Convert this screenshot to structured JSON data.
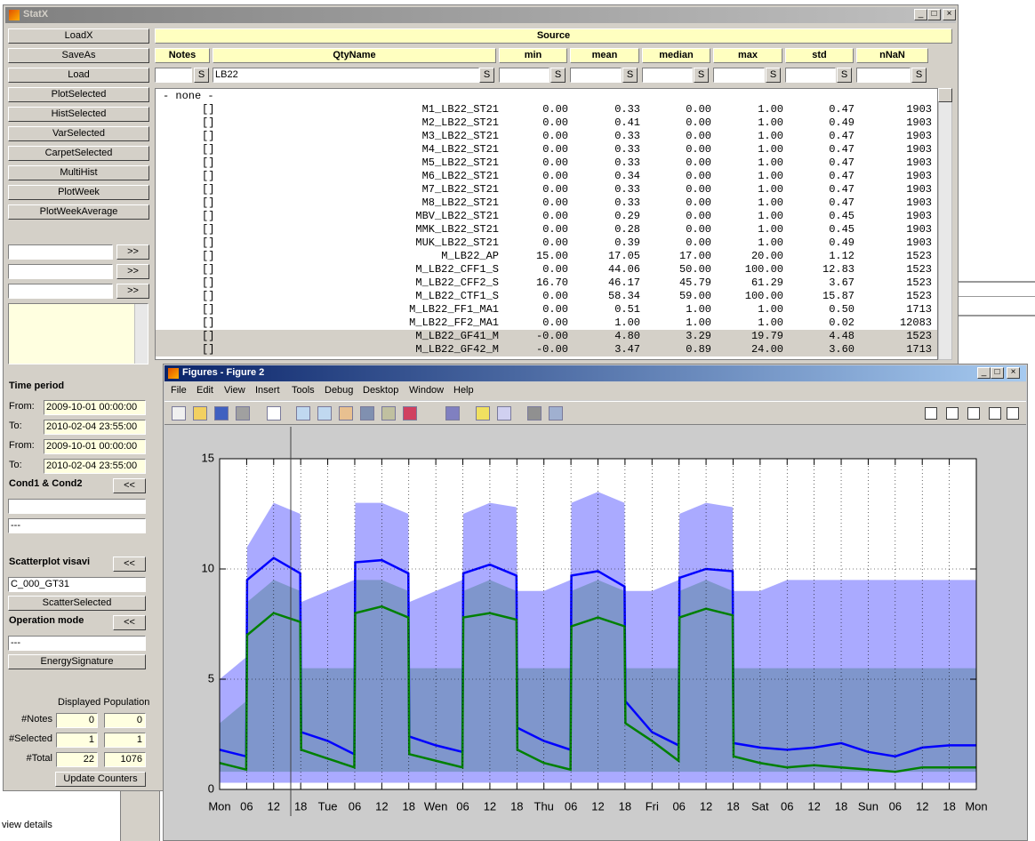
{
  "statx": {
    "title": "StatX",
    "buttons": [
      "LoadX",
      "SaveAs",
      "Load",
      "PlotSelected",
      "HistSelected",
      "VarSelected",
      "CarpetSelected",
      "MultiHist",
      "PlotWeek",
      "PlotWeekAverage"
    ],
    "more": ">>",
    "back": "<<",
    "source": "Source",
    "columns": [
      "Notes",
      "QtyName",
      "min",
      "mean",
      "median",
      "max",
      "std",
      "nNaN"
    ],
    "search": "S",
    "filter": "LB22",
    "none": "- none -",
    "rows": [
      [
        "[]",
        "M1_LB22_ST21",
        "0.00",
        "0.33",
        "0.00",
        "1.00",
        "0.47",
        "1903"
      ],
      [
        "[]",
        "M2_LB22_ST21",
        "0.00",
        "0.41",
        "0.00",
        "1.00",
        "0.49",
        "1903"
      ],
      [
        "[]",
        "M3_LB22_ST21",
        "0.00",
        "0.33",
        "0.00",
        "1.00",
        "0.47",
        "1903"
      ],
      [
        "[]",
        "M4_LB22_ST21",
        "0.00",
        "0.33",
        "0.00",
        "1.00",
        "0.47",
        "1903"
      ],
      [
        "[]",
        "M5_LB22_ST21",
        "0.00",
        "0.33",
        "0.00",
        "1.00",
        "0.47",
        "1903"
      ],
      [
        "[]",
        "M6_LB22_ST21",
        "0.00",
        "0.34",
        "0.00",
        "1.00",
        "0.47",
        "1903"
      ],
      [
        "[]",
        "M7_LB22_ST21",
        "0.00",
        "0.33",
        "0.00",
        "1.00",
        "0.47",
        "1903"
      ],
      [
        "[]",
        "M8_LB22_ST21",
        "0.00",
        "0.33",
        "0.00",
        "1.00",
        "0.47",
        "1903"
      ],
      [
        "[]",
        "MBV_LB22_ST21",
        "0.00",
        "0.29",
        "0.00",
        "1.00",
        "0.45",
        "1903"
      ],
      [
        "[]",
        "MMK_LB22_ST21",
        "0.00",
        "0.28",
        "0.00",
        "1.00",
        "0.45",
        "1903"
      ],
      [
        "[]",
        "MUK_LB22_ST21",
        "0.00",
        "0.39",
        "0.00",
        "1.00",
        "0.49",
        "1903"
      ],
      [
        "[]",
        "M_LB22_AP",
        "15.00",
        "17.05",
        "17.00",
        "20.00",
        "1.12",
        "1523"
      ],
      [
        "[]",
        "M_LB22_CFF1_S",
        "0.00",
        "44.06",
        "50.00",
        "100.00",
        "12.83",
        "1523"
      ],
      [
        "[]",
        "M_LB22_CFF2_S",
        "16.70",
        "46.17",
        "45.79",
        "61.29",
        "3.67",
        "1523"
      ],
      [
        "[]",
        "M_LB22_CTF1_S",
        "0.00",
        "58.34",
        "59.00",
        "100.00",
        "15.87",
        "1523"
      ],
      [
        "[]",
        "M_LB22_FF1_MA1",
        "0.00",
        "0.51",
        "1.00",
        "1.00",
        "0.50",
        "1713"
      ],
      [
        "[]",
        "M_LB22_FF2_MA1",
        "0.00",
        "1.00",
        "1.00",
        "1.00",
        "0.02",
        "12083"
      ],
      [
        "[]",
        "M_LB22_GF41_M",
        "-0.00",
        "4.80",
        "3.29",
        "19.79",
        "4.48",
        "1523"
      ],
      [
        "[]",
        "M_LB22_GF42_M",
        "-0.00",
        "3.47",
        "0.89",
        "24.00",
        "3.60",
        "1713"
      ]
    ],
    "selected_rows": [
      17,
      18
    ],
    "time_period": "Time period",
    "from": "From:",
    "to": "To:",
    "dates": [
      "2009-10-01 00:00:00",
      "2010-02-04 23:55:00",
      "2009-10-01 00:00:00",
      "2010-02-04 23:55:00"
    ],
    "cond": "Cond1 & Cond2",
    "cond_value": "---",
    "scatter": "Scatterplot visavi",
    "scatter_value": "C_000_GT31",
    "scatter_button": "ScatterSelected",
    "operation": "Operation mode",
    "operation_value": "---",
    "energy_button": "EnergySignature",
    "population": "Displayed Population",
    "counters": [
      {
        "label": "#Notes",
        "values": [
          0,
          0
        ]
      },
      {
        "label": "#Selected",
        "values": [
          1,
          1
        ]
      },
      {
        "label": "#Total",
        "values": [
          22,
          1076
        ]
      }
    ],
    "update": "Update Counters"
  },
  "desktop": {
    "link": "view details"
  },
  "figure": {
    "title": "Figures - Figure 2",
    "menu": [
      "File",
      "Edit",
      "View",
      "Insert",
      "Tools",
      "Debug",
      "Desktop",
      "Window",
      "Help"
    ]
  },
  "chart_data": {
    "type": "line",
    "x": [
      0,
      5.9,
      6.1,
      12,
      17.9,
      18.1,
      24,
      29.9,
      30.1,
      36,
      41.9,
      42.1,
      48,
      53.9,
      54.1,
      60,
      65.9,
      66.1,
      72,
      77.9,
      78.1,
      84,
      89.9,
      90.1,
      96,
      101.9,
      102.1,
      108,
      113.9,
      114.1,
      120,
      126,
      132,
      138,
      144,
      150,
      156,
      162,
      168
    ],
    "bands": [
      {
        "color": "#aaaaff",
        "lower": [
          0.3,
          0.3,
          0.3,
          0.3,
          0.3,
          0.3,
          0.3,
          0.3,
          0.3,
          0.3,
          0.3,
          0.3,
          0.3,
          0.3,
          0.3,
          0.3,
          0.3,
          0.3,
          0.3,
          0.3,
          0.3,
          0.3,
          0.3,
          0.3,
          0.3,
          0.3,
          0.3,
          0.3,
          0.3,
          0.3,
          0.3,
          0.3,
          0.3,
          0.3,
          0.3,
          0.3,
          0.3,
          0.3,
          0.3
        ],
        "upper": [
          5,
          6,
          11,
          13,
          12.5,
          8.5,
          9,
          9.5,
          13,
          13,
          12.5,
          8.5,
          9,
          9.5,
          12.5,
          13,
          12.8,
          9,
          9,
          9.5,
          13,
          13.5,
          13,
          9,
          9,
          9.5,
          12.5,
          13,
          12.8,
          9,
          9,
          9.5,
          9.5,
          9.5,
          9.5,
          9.5,
          9.5,
          9.5,
          9.5
        ]
      },
      {
        "color": "#7f96cc",
        "lower": [
          0.8,
          0.8,
          0.8,
          0.8,
          0.8,
          0.8,
          0.8,
          0.8,
          0.8,
          0.8,
          0.8,
          0.8,
          0.8,
          0.8,
          0.8,
          0.8,
          0.8,
          0.8,
          0.8,
          0.8,
          0.8,
          0.8,
          0.8,
          0.8,
          0.8,
          0.8,
          0.8,
          0.8,
          0.8,
          0.8,
          0.8,
          0.8,
          0.8,
          0.8,
          0.8,
          0.8,
          0.8,
          0.8,
          0.8
        ],
        "upper": [
          3,
          4,
          8.5,
          9.5,
          9,
          5.5,
          5.5,
          5.5,
          9.5,
          9.5,
          9,
          5.5,
          5.5,
          5.5,
          9,
          9.5,
          9,
          5.5,
          5.5,
          5.5,
          9,
          9.5,
          9,
          5.5,
          5.5,
          5.5,
          9,
          9.5,
          9,
          5.5,
          5.5,
          5.5,
          5.5,
          5.5,
          5.5,
          5.5,
          5.5,
          5.5,
          5.5
        ]
      }
    ],
    "series": [
      {
        "color": "#0000ff",
        "values": [
          1.8,
          1.5,
          9.5,
          10.5,
          9.8,
          2.6,
          2.2,
          1.6,
          10.3,
          10.4,
          9.8,
          2.4,
          2.0,
          1.7,
          9.8,
          10.2,
          9.7,
          2.8,
          2.2,
          1.8,
          9.7,
          9.9,
          9.2,
          4.0,
          2.6,
          2.0,
          9.6,
          10.0,
          9.9,
          2.1,
          1.9,
          1.8,
          1.9,
          2.1,
          1.7,
          1.5,
          1.9,
          2.0,
          2.0
        ]
      },
      {
        "color": "#008000",
        "values": [
          1.2,
          0.9,
          7.0,
          8.0,
          7.6,
          1.8,
          1.4,
          1.0,
          8.0,
          8.3,
          7.8,
          1.6,
          1.3,
          1.0,
          7.8,
          8.0,
          7.7,
          1.8,
          1.2,
          0.9,
          7.4,
          7.8,
          7.4,
          3.0,
          2.2,
          1.3,
          7.8,
          8.2,
          7.9,
          1.5,
          1.2,
          1.0,
          1.1,
          1.0,
          0.9,
          0.8,
          1.0,
          1.0,
          1.0
        ]
      }
    ],
    "xlim": [
      0,
      168
    ],
    "xticks": [
      {
        "value": 0,
        "label": "Mon"
      },
      {
        "value": 6,
        "label": "06"
      },
      {
        "value": 12,
        "label": "12"
      },
      {
        "value": 18,
        "label": "18"
      },
      {
        "value": 24,
        "label": "Tue"
      },
      {
        "value": 30,
        "label": "06"
      },
      {
        "value": 36,
        "label": "12"
      },
      {
        "value": 42,
        "label": "18"
      },
      {
        "value": 48,
        "label": "Wen"
      },
      {
        "value": 54,
        "label": "06"
      },
      {
        "value": 60,
        "label": "12"
      },
      {
        "value": 66,
        "label": "18"
      },
      {
        "value": 72,
        "label": "Thu"
      },
      {
        "value": 78,
        "label": "06"
      },
      {
        "value": 84,
        "label": "12"
      },
      {
        "value": 90,
        "label": "18"
      },
      {
        "value": 96,
        "label": "Fri"
      },
      {
        "value": 102,
        "label": "06"
      },
      {
        "value": 108,
        "label": "12"
      },
      {
        "value": 114,
        "label": "18"
      },
      {
        "value": 120,
        "label": "Sat"
      },
      {
        "value": 126,
        "label": "06"
      },
      {
        "value": 132,
        "label": "12"
      },
      {
        "value": 138,
        "label": "18"
      },
      {
        "value": 144,
        "label": "Sun"
      },
      {
        "value": 150,
        "label": "06"
      },
      {
        "value": 156,
        "label": "12"
      },
      {
        "value": 162,
        "label": "18"
      },
      {
        "value": 168,
        "label": "Mon"
      }
    ],
    "ylim": [
      0,
      15
    ],
    "yticks": [
      0,
      5,
      10,
      15
    ],
    "grid": true
  }
}
